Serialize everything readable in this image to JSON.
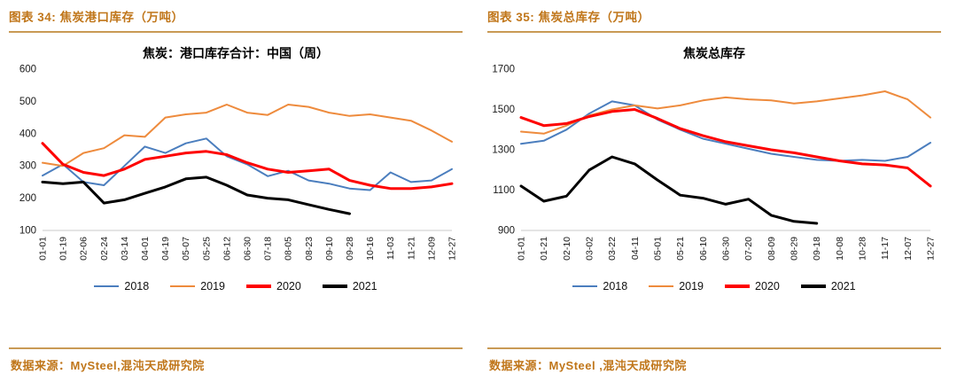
{
  "accent": {
    "header_text": "#C0761A",
    "rule": "#C99A55",
    "axis_text": "#1A1A1A",
    "axis_line": "#C8C8C8"
  },
  "panels": [
    {
      "figure_label": "图表 34: 焦炭港口库存（万吨）",
      "source": "数据来源：MySteel,混沌天成研究院"
    },
    {
      "figure_label": "图表 35: 焦炭总库存（万吨）",
      "source": "数据来源：MySteel ,混沌天成研究院"
    }
  ],
  "chart_data": [
    {
      "type": "line",
      "title": "焦炭：港口库存合计：中国（周）",
      "categories": [
        "01-01",
        "01-19",
        "02-06",
        "02-24",
        "03-14",
        "04-01",
        "04-19",
        "05-07",
        "05-25",
        "06-12",
        "06-30",
        "07-18",
        "08-05",
        "08-23",
        "09-10",
        "09-28",
        "10-16",
        "11-03",
        "11-21",
        "12-09",
        "12-27"
      ],
      "ylim": [
        100,
        600
      ],
      "yticks": [
        100,
        200,
        300,
        400,
        500,
        600
      ],
      "grid": false,
      "legend_position": "bottom",
      "series": [
        {
          "name": "2018",
          "color": "#4B7EBE",
          "width": 2,
          "values": [
            270,
            305,
            250,
            240,
            300,
            360,
            340,
            370,
            385,
            330,
            305,
            268,
            285,
            255,
            245,
            230,
            225,
            280,
            250,
            255,
            290
          ]
        },
        {
          "name": "2019",
          "color": "#EE8B3D",
          "width": 2,
          "values": [
            310,
            300,
            340,
            355,
            395,
            390,
            450,
            460,
            465,
            490,
            465,
            458,
            490,
            483,
            465,
            455,
            460,
            450,
            440,
            410,
            375
          ]
        },
        {
          "name": "2020",
          "color": "#FE0000",
          "width": 3,
          "values": [
            370,
            305,
            280,
            270,
            290,
            320,
            330,
            340,
            345,
            335,
            310,
            290,
            280,
            285,
            290,
            255,
            240,
            230,
            230,
            235,
            245
          ]
        },
        {
          "name": "2021",
          "color": "#000000",
          "width": 3,
          "values": [
            250,
            245,
            250,
            185,
            195,
            215,
            235,
            260,
            265,
            240,
            210,
            200,
            195,
            180,
            165,
            152,
            null,
            null,
            null,
            null,
            null
          ]
        }
      ]
    },
    {
      "type": "line",
      "title": "焦炭总库存",
      "categories": [
        "01-01",
        "01-21",
        "02-10",
        "03-02",
        "03-22",
        "04-11",
        "05-01",
        "05-21",
        "06-10",
        "06-30",
        "07-20",
        "08-09",
        "08-29",
        "09-18",
        "10-08",
        "10-28",
        "11-17",
        "12-07",
        "12-27"
      ],
      "ylim": [
        900,
        1700
      ],
      "yticks": [
        900,
        1100,
        1300,
        1500,
        1700
      ],
      "grid": false,
      "legend_position": "bottom",
      "series": [
        {
          "name": "2018",
          "color": "#4B7EBE",
          "width": 2,
          "values": [
            1330,
            1345,
            1400,
            1480,
            1540,
            1520,
            1450,
            1400,
            1355,
            1330,
            1305,
            1280,
            1265,
            1250,
            1245,
            1250,
            1245,
            1265,
            1335
          ]
        },
        {
          "name": "2019",
          "color": "#EE8B3D",
          "width": 2,
          "values": [
            1390,
            1380,
            1420,
            1470,
            1500,
            1520,
            1505,
            1520,
            1545,
            1560,
            1550,
            1545,
            1530,
            1540,
            1555,
            1570,
            1590,
            1550,
            1460
          ]
        },
        {
          "name": "2020",
          "color": "#FE0000",
          "width": 3,
          "values": [
            1460,
            1420,
            1430,
            1465,
            1490,
            1500,
            1455,
            1405,
            1370,
            1340,
            1320,
            1300,
            1285,
            1265,
            1245,
            1230,
            1225,
            1210,
            1120
          ]
        },
        {
          "name": "2021",
          "color": "#000000",
          "width": 3,
          "values": [
            1120,
            1045,
            1070,
            1200,
            1265,
            1230,
            1150,
            1075,
            1060,
            1030,
            1055,
            975,
            945,
            935,
            null,
            null,
            null,
            null,
            null
          ]
        }
      ]
    }
  ]
}
